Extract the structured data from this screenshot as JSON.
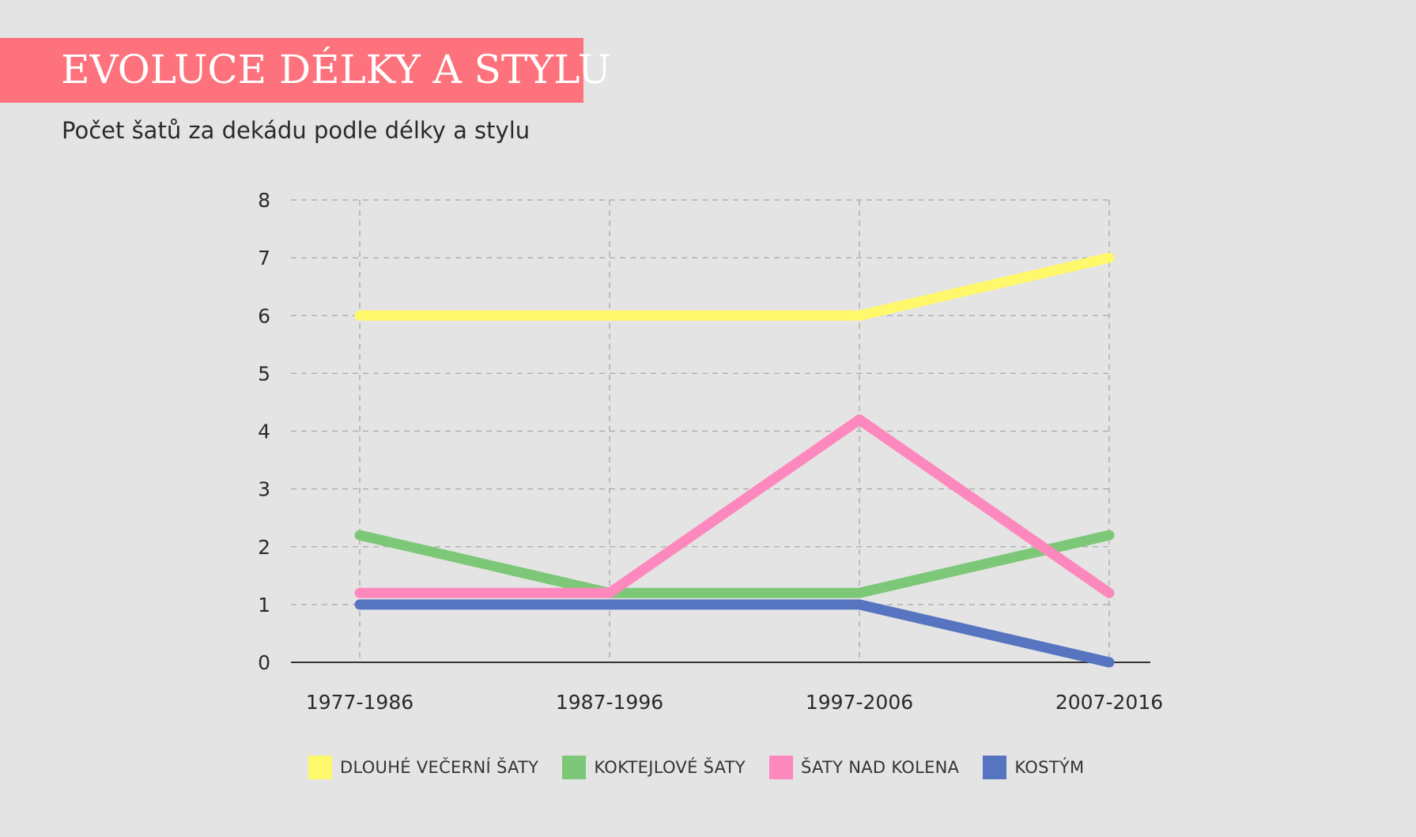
{
  "header": {
    "title": "EVOLUCE DÉLKY A STYLU",
    "subtitle": "Počet šatů za dekádu podle délky a stylu",
    "banner_color": "#fd727c"
  },
  "chart_data": {
    "type": "line",
    "categories": [
      "1977-1986",
      "1987-1996",
      "1997-2006",
      "2007-2016"
    ],
    "series": [
      {
        "name": "DLOUHÉ VEČERNÍ ŠATY",
        "color": "#fff86a",
        "values": [
          6,
          6,
          6,
          7
        ]
      },
      {
        "name": "KOKTEJLOVÉ ŠATY",
        "color": "#7dc878",
        "values": [
          2.2,
          1.2,
          1.2,
          2.2
        ]
      },
      {
        "name": "ŠATY NAD KOLENA",
        "color": "#fd88bd",
        "values": [
          1.2,
          1.2,
          4.2,
          1.2
        ]
      },
      {
        "name": "KOSTÝM",
        "color": "#5674c0",
        "values": [
          1,
          1,
          1,
          0
        ]
      }
    ],
    "ylim": [
      0,
      8
    ],
    "yticks": [
      0,
      1,
      2,
      3,
      4,
      5,
      6,
      7,
      8
    ],
    "grid": true,
    "legend_position": "bottom"
  }
}
